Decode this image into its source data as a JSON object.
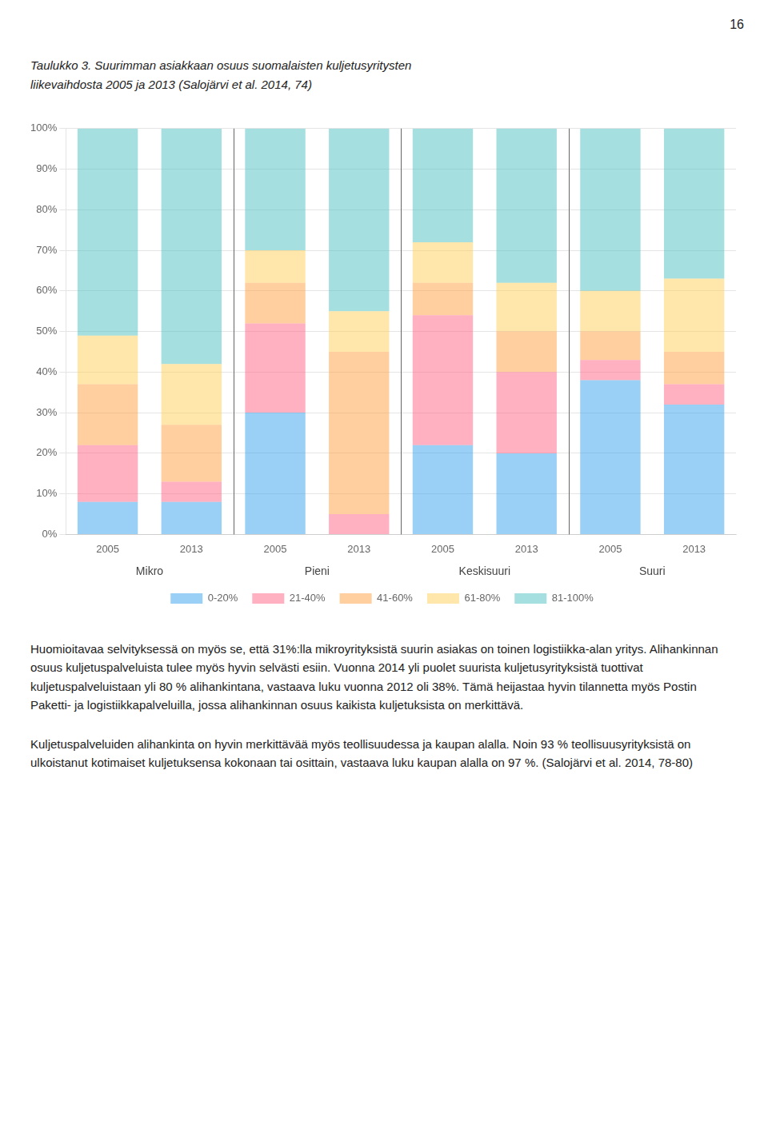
{
  "page_number": "16",
  "chart_data": {
    "type": "bar",
    "stacked": true,
    "title": [
      "Taulukko 3.  Suurimman asiakkaan osuus suomalaisten kuljetusyritysten",
      "liikevaihdosta 2005 ja 2013 (Salojärvi et al. 2014, 74)"
    ],
    "categories": [
      "2005",
      "2013",
      "2005",
      "2013",
      "2005",
      "2013",
      "2005",
      "2013"
    ],
    "groups": [
      "Mikro",
      "Pieni",
      "Keskisuuri",
      "Suuri"
    ],
    "series": [
      {
        "name": "0-20%",
        "values": [
          8,
          8,
          30,
          0,
          22,
          20,
          38,
          32
        ]
      },
      {
        "name": "21-40%",
        "values": [
          14,
          5,
          22,
          5,
          32,
          20,
          5,
          5
        ]
      },
      {
        "name": "41-60%",
        "values": [
          15,
          14,
          10,
          40,
          8,
          10,
          7,
          8
        ]
      },
      {
        "name": "61-80%",
        "values": [
          12,
          15,
          8,
          10,
          10,
          12,
          10,
          18
        ]
      },
      {
        "name": "81-100%",
        "values": [
          51,
          58,
          30,
          45,
          28,
          38,
          40,
          37
        ]
      }
    ],
    "ylim": [
      0,
      100
    ],
    "yticks": [
      {
        "value": 0,
        "label": "0%"
      },
      {
        "value": 10,
        "label": "10%"
      },
      {
        "value": 20,
        "label": "20%"
      },
      {
        "value": 30,
        "label": "30%"
      },
      {
        "value": 40,
        "label": "40%"
      },
      {
        "value": 50,
        "label": "50%"
      },
      {
        "value": 60,
        "label": "60%"
      },
      {
        "value": 70,
        "label": "70%"
      },
      {
        "value": 80,
        "label": "80%"
      },
      {
        "value": 90,
        "label": "90%"
      },
      {
        "value": 100,
        "label": "100%"
      }
    ],
    "grid": true,
    "legend": "bottom"
  },
  "text": [
    "Huomioitavaa selvityksessä on myös se, että 31%:lla mikroyrityksistä suurin asiakas on toinen logistiikka-alan yritys. Alihankinnan osuus kuljetuspalveluista tulee myös hyvin selvästi esiin. Vuonna 2014 yli puolet suurista kuljetusyrityksistä tuottivat kuljetuspalveluistaan yli 80 % alihankintana, vastaava luku vuonna 2012 oli 38%. Tämä heijastaa hyvin tilannetta myös Postin Paketti- ja logistiikkapalveluilla, jossa alihankinnan osuus kaikista kuljetuksista on merkittävä.",
    "Kuljetuspalveluiden alihankinta on hyvin merkittävää myös teollisuudessa ja kaupan alalla. Noin 93 % teollisuusyrityksistä on ulkoistanut kotimaiset kuljetuksensa kokonaan tai osittain, vastaava luku kaupan alalla on 97 %. (Salojärvi et al. 2014, 78-80)"
  ]
}
